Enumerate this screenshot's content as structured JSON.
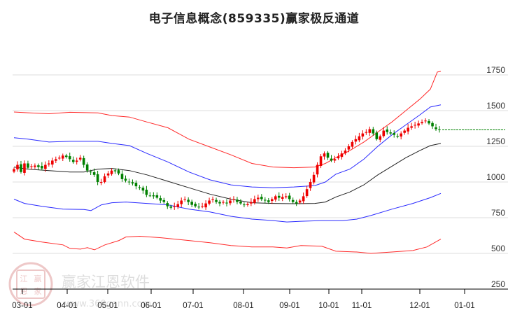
{
  "title": "电子信息概念(859335)赢家极反通道",
  "watermark": {
    "brand": "赢家江恩软件",
    "url": "www.360gann.com",
    "seal": [
      "江",
      "赢",
      "恩",
      "家"
    ]
  },
  "colors": {
    "up": "#ee0000",
    "down": "#008000",
    "outer_band": "#ff2a2a",
    "inner_band": "#2a2aff",
    "mid_line": "#222222",
    "grid": "#dddddd",
    "last_price_line": "#008000",
    "axis": "#000000"
  },
  "chart_data": {
    "type": "line",
    "title": "电子信息概念(859335)赢家极反通道",
    "xlabel": "",
    "ylabel": "",
    "ylim": [
      250,
      1850
    ],
    "y_ticks": [
      1750,
      1500,
      1250,
      1000,
      750,
      500,
      250
    ],
    "x_ticks": [
      "03-01",
      "04-01",
      "05-01",
      "06-01",
      "07-01",
      "08-01",
      "09-01",
      "10-01",
      "11-01",
      "12-01",
      "01-01"
    ],
    "grid": true,
    "legend": "none",
    "last_price": 1365,
    "series": [
      {
        "name": "outer_upper",
        "color": "#ff2a2a",
        "points": [
          [
            20,
            1490
          ],
          [
            40,
            1485
          ],
          [
            70,
            1478
          ],
          [
            100,
            1488
          ],
          [
            140,
            1484
          ],
          [
            160,
            1465
          ],
          [
            185,
            1455
          ],
          [
            210,
            1420
          ],
          [
            240,
            1380
          ],
          [
            270,
            1300
          ],
          [
            300,
            1245
          ],
          [
            330,
            1190
          ],
          [
            360,
            1130
          ],
          [
            390,
            1105
          ],
          [
            420,
            1100
          ],
          [
            450,
            1105
          ],
          [
            465,
            1130
          ],
          [
            480,
            1170
          ],
          [
            500,
            1220
          ],
          [
            520,
            1280
          ],
          [
            540,
            1350
          ],
          [
            560,
            1420
          ],
          [
            580,
            1500
          ],
          [
            600,
            1580
          ],
          [
            615,
            1650
          ],
          [
            625,
            1770
          ],
          [
            630,
            1775
          ]
        ]
      },
      {
        "name": "inner_upper",
        "color": "#2a2aff",
        "points": [
          [
            20,
            1310
          ],
          [
            40,
            1300
          ],
          [
            70,
            1280
          ],
          [
            100,
            1285
          ],
          [
            140,
            1285
          ],
          [
            160,
            1270
          ],
          [
            185,
            1255
          ],
          [
            210,
            1200
          ],
          [
            240,
            1140
          ],
          [
            270,
            1070
          ],
          [
            300,
            1015
          ],
          [
            330,
            980
          ],
          [
            360,
            965
          ],
          [
            390,
            960
          ],
          [
            420,
            965
          ],
          [
            450,
            975
          ],
          [
            465,
            1000
          ],
          [
            480,
            1055
          ],
          [
            500,
            1090
          ],
          [
            520,
            1160
          ],
          [
            540,
            1250
          ],
          [
            560,
            1330
          ],
          [
            580,
            1400
          ],
          [
            600,
            1470
          ],
          [
            615,
            1525
          ],
          [
            630,
            1540
          ]
        ]
      },
      {
        "name": "middle",
        "color": "#222222",
        "points": [
          [
            20,
            1105
          ],
          [
            40,
            1090
          ],
          [
            70,
            1080
          ],
          [
            100,
            1070
          ],
          [
            120,
            1070
          ],
          [
            140,
            1090
          ],
          [
            160,
            1095
          ],
          [
            185,
            1080
          ],
          [
            210,
            1050
          ],
          [
            240,
            1005
          ],
          [
            270,
            960
          ],
          [
            300,
            915
          ],
          [
            330,
            880
          ],
          [
            360,
            855
          ],
          [
            390,
            850
          ],
          [
            420,
            848
          ],
          [
            450,
            850
          ],
          [
            465,
            860
          ],
          [
            480,
            895
          ],
          [
            500,
            930
          ],
          [
            520,
            980
          ],
          [
            540,
            1050
          ],
          [
            560,
            1110
          ],
          [
            580,
            1170
          ],
          [
            600,
            1220
          ],
          [
            615,
            1255
          ],
          [
            630,
            1270
          ]
        ]
      },
      {
        "name": "inner_lower",
        "color": "#2a2aff",
        "points": [
          [
            20,
            880
          ],
          [
            35,
            850
          ],
          [
            60,
            830
          ],
          [
            90,
            810
          ],
          [
            120,
            808
          ],
          [
            130,
            800
          ],
          [
            145,
            840
          ],
          [
            160,
            855
          ],
          [
            180,
            860
          ],
          [
            210,
            850
          ],
          [
            240,
            840
          ],
          [
            270,
            810
          ],
          [
            300,
            790
          ],
          [
            330,
            760
          ],
          [
            360,
            740
          ],
          [
            390,
            730
          ],
          [
            410,
            720
          ],
          [
            430,
            725
          ],
          [
            460,
            730
          ],
          [
            490,
            730
          ],
          [
            510,
            740
          ],
          [
            530,
            765
          ],
          [
            560,
            810
          ],
          [
            590,
            850
          ],
          [
            615,
            890
          ],
          [
            630,
            920
          ]
        ]
      },
      {
        "name": "outer_lower",
        "color": "#ff2a2a",
        "points": [
          [
            20,
            650
          ],
          [
            35,
            600
          ],
          [
            60,
            580
          ],
          [
            90,
            560
          ],
          [
            100,
            535
          ],
          [
            115,
            530
          ],
          [
            125,
            540
          ],
          [
            135,
            525
          ],
          [
            150,
            560
          ],
          [
            170,
            590
          ],
          [
            180,
            615
          ],
          [
            200,
            620
          ],
          [
            230,
            610
          ],
          [
            270,
            590
          ],
          [
            300,
            575
          ],
          [
            330,
            555
          ],
          [
            360,
            545
          ],
          [
            390,
            545
          ],
          [
            410,
            538
          ],
          [
            430,
            555
          ],
          [
            460,
            550
          ],
          [
            480,
            515
          ],
          [
            510,
            510
          ],
          [
            530,
            500
          ],
          [
            560,
            510
          ],
          [
            590,
            520
          ],
          [
            610,
            545
          ],
          [
            630,
            600
          ]
        ]
      }
    ],
    "candles_close": [
      1090,
      1120,
      1070,
      1130,
      1100,
      1110,
      1115,
      1105,
      1095,
      1120,
      1130,
      1150,
      1160,
      1170,
      1185,
      1175,
      1160,
      1140,
      1150,
      1170,
      1120,
      1080,
      1070,
      1050,
      1000,
      1000,
      1040,
      1060,
      1080,
      1075,
      1060,
      1020,
      1010,
      1000,
      990,
      970,
      960,
      940,
      910,
      905,
      900,
      890,
      870,
      860,
      830,
      820,
      830,
      845,
      870,
      880,
      860,
      840,
      830,
      825,
      830,
      850,
      870,
      880,
      860,
      850,
      860,
      850,
      870,
      880,
      860,
      850,
      840,
      845,
      860,
      880,
      890,
      880,
      870,
      860,
      880,
      900,
      890,
      895,
      900,
      880,
      860,
      850,
      870,
      900,
      950,
      1000,
      1050,
      1120,
      1180,
      1200,
      1170,
      1150,
      1160,
      1180,
      1200,
      1220,
      1250,
      1280,
      1300,
      1320,
      1340,
      1350,
      1370,
      1340,
      1300,
      1320,
      1360,
      1350,
      1340,
      1330,
      1320,
      1340,
      1360,
      1380,
      1390,
      1400,
      1410,
      1420,
      1430,
      1410,
      1390,
      1370,
      1365
    ]
  }
}
